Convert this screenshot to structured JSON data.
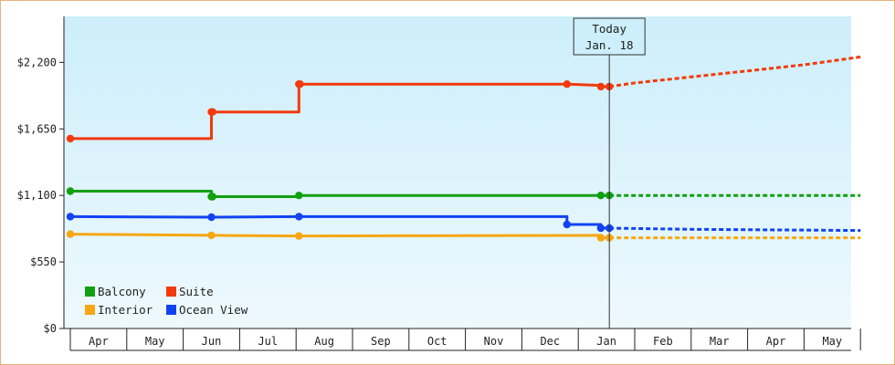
{
  "chart_data": {
    "type": "line",
    "title": "",
    "xlabel": "",
    "ylabel": "",
    "y_ticks": [
      {
        "value": 0,
        "label": "$0"
      },
      {
        "value": 550,
        "label": "$550"
      },
      {
        "value": 1100,
        "label": "$1,100"
      },
      {
        "value": 1650,
        "label": "$1,650"
      },
      {
        "value": 2200,
        "label": "$2,200"
      }
    ],
    "ylim": [
      0,
      2580
    ],
    "months": [
      "Apr",
      "May",
      "Jun",
      "Jul",
      "Aug",
      "Sep",
      "Oct",
      "Nov",
      "Dec",
      "Jan",
      "Feb",
      "Mar",
      "Apr",
      "May"
    ],
    "today": {
      "line1": "Today",
      "line2": "Jan. 18",
      "month_index": 9.55
    },
    "grid": false,
    "legend_position": "bottom-left",
    "background_gradient": [
      "#cdeefb",
      "#eef9fe"
    ],
    "series": [
      {
        "name": "Balcony",
        "color": "#11a011",
        "points": [
          [
            0,
            1135
          ],
          [
            2.5,
            1135
          ],
          [
            2.5,
            1090
          ],
          [
            4.05,
            1090
          ],
          [
            4.05,
            1100
          ],
          [
            9.4,
            1100
          ],
          [
            9.4,
            1100
          ],
          [
            9.55,
            1100
          ]
        ],
        "markers": [
          0,
          2.5,
          2.52,
          4.05,
          9.4,
          9.55
        ],
        "forecast": [
          [
            9.55,
            1100
          ],
          [
            14.0,
            1100
          ]
        ]
      },
      {
        "name": "Suite",
        "color": "#f23a0c",
        "points": [
          [
            0,
            1570
          ],
          [
            2.5,
            1570
          ],
          [
            2.5,
            1790
          ],
          [
            4.05,
            1790
          ],
          [
            4.05,
            2020
          ],
          [
            8.8,
            2020
          ],
          [
            9.4,
            2010
          ],
          [
            9.4,
            2000
          ],
          [
            9.55,
            2000
          ]
        ],
        "markers": [
          0,
          2.5,
          2.52,
          4.05,
          4.07,
          8.8,
          9.4,
          9.55
        ],
        "forecast": [
          [
            9.55,
            2000
          ],
          [
            10.0,
            2030
          ],
          [
            11.0,
            2080
          ],
          [
            12.0,
            2130
          ],
          [
            13.0,
            2180
          ],
          [
            14.0,
            2245
          ]
        ]
      },
      {
        "name": "Interior",
        "color": "#f6a712",
        "points": [
          [
            0,
            780
          ],
          [
            2.5,
            770
          ],
          [
            4.05,
            765
          ],
          [
            9.4,
            770
          ],
          [
            9.4,
            750
          ],
          [
            9.55,
            750
          ]
        ],
        "markers": [
          0,
          2.5,
          4.05,
          9.4,
          9.55
        ],
        "forecast": [
          [
            9.55,
            750
          ],
          [
            14.0,
            750
          ]
        ]
      },
      {
        "name": "Ocean View",
        "color": "#1142f2",
        "points": [
          [
            0,
            925
          ],
          [
            2.5,
            920
          ],
          [
            4.05,
            925
          ],
          [
            8.8,
            925
          ],
          [
            8.8,
            860
          ],
          [
            9.4,
            860
          ],
          [
            9.4,
            830
          ],
          [
            9.55,
            830
          ]
        ],
        "markers": [
          0,
          2.5,
          4.05,
          8.8,
          9.4,
          9.55
        ],
        "forecast": [
          [
            9.55,
            830
          ],
          [
            11.0,
            820
          ],
          [
            14.0,
            810
          ]
        ]
      }
    ]
  }
}
